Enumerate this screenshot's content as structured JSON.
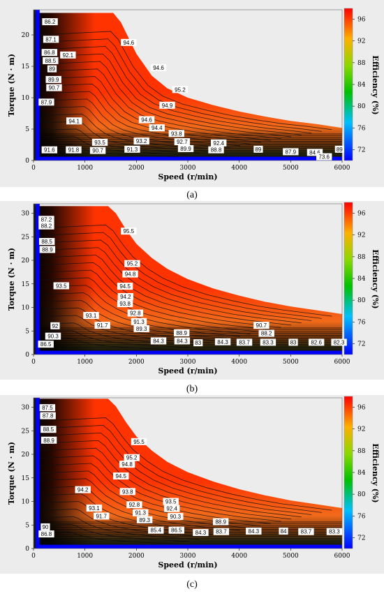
{
  "colors": {
    "high": "#ff3300",
    "mid": "#f26a1a",
    "low": "#1a1a0a",
    "blue": "#0000ff",
    "background": "#ececec"
  },
  "chart_data": [
    {
      "type": "heatmap",
      "caption": "(a)",
      "xlabel": "Speed (r/min)",
      "ylabel": "Torque (N · m)",
      "colorbar_label": "Efficiency (%)",
      "xlim": [
        0,
        6000
      ],
      "ylim": [
        0,
        24
      ],
      "x_ticks": [
        0,
        1000,
        2000,
        3000,
        4000,
        5000,
        6000
      ],
      "y_ticks": [
        0,
        5,
        10,
        15,
        20
      ],
      "colorbar_ticks": [
        72,
        76,
        80,
        84,
        88,
        92,
        96
      ],
      "colorbar_range": [
        70,
        98
      ],
      "max_torque_envelope": {
        "speed": [
          0,
          1550,
          1700,
          2000,
          2300,
          2600,
          3000,
          3500,
          4000,
          4500,
          5000,
          5500,
          6000
        ],
        "torque": [
          23.5,
          23.5,
          22.0,
          17.0,
          13.5,
          11.5,
          10.0,
          8.8,
          7.8,
          7.0,
          6.3,
          5.8,
          5.2
        ]
      },
      "contour_labels": [
        {
          "text": "86.2",
          "speed": 320,
          "torque": 22.1
        },
        {
          "text": "87.1",
          "speed": 340,
          "torque": 19.3
        },
        {
          "text": "86.8",
          "speed": 310,
          "torque": 17.2
        },
        {
          "text": "92.1",
          "speed": 670,
          "torque": 16.8
        },
        {
          "text": "88.5",
          "speed": 330,
          "torque": 15.9
        },
        {
          "text": "89",
          "speed": 360,
          "torque": 14.6
        },
        {
          "text": "89.9",
          "speed": 390,
          "torque": 12.9
        },
        {
          "text": "90.7",
          "speed": 400,
          "torque": 11.6
        },
        {
          "text": "87.9",
          "speed": 250,
          "torque": 9.3
        },
        {
          "text": "94.6",
          "speed": 1850,
          "torque": 18.8
        },
        {
          "text": "94.6",
          "speed": 2430,
          "torque": 14.8
        },
        {
          "text": "95.2",
          "speed": 2850,
          "torque": 11.3
        },
        {
          "text": "94.9",
          "speed": 2600,
          "torque": 8.8
        },
        {
          "text": "94.1",
          "speed": 790,
          "torque": 6.3
        },
        {
          "text": "94.6",
          "speed": 2200,
          "torque": 6.5
        },
        {
          "text": "94.4",
          "speed": 2400,
          "torque": 5.2
        },
        {
          "text": "93.8",
          "speed": 2780,
          "torque": 4.3
        },
        {
          "text": "93.2",
          "speed": 2100,
          "torque": 3.1
        },
        {
          "text": "92.7",
          "speed": 2890,
          "torque": 3.0
        },
        {
          "text": "92.4",
          "speed": 3600,
          "torque": 2.8
        },
        {
          "text": "93.5",
          "speed": 1290,
          "torque": 2.9
        },
        {
          "text": "91.6",
          "speed": 310,
          "torque": 1.7
        },
        {
          "text": "91.8",
          "speed": 780,
          "torque": 1.7
        },
        {
          "text": "90.7",
          "speed": 1250,
          "torque": 1.6
        },
        {
          "text": "91.3",
          "speed": 1920,
          "torque": 1.8
        },
        {
          "text": "89.9",
          "speed": 2960,
          "torque": 1.9
        },
        {
          "text": "88.8",
          "speed": 3550,
          "torque": 1.7
        },
        {
          "text": "89",
          "speed": 4370,
          "torque": 1.8
        },
        {
          "text": "87.9",
          "speed": 5000,
          "torque": 1.4
        },
        {
          "text": "84.6",
          "speed": 5470,
          "torque": 1.3
        },
        {
          "text": "89",
          "speed": 5950,
          "torque": 1.8
        },
        {
          "text": "73.6",
          "speed": 5650,
          "torque": 0.6
        }
      ]
    },
    {
      "type": "heatmap",
      "caption": "(b)",
      "xlabel": "Speed (r/min)",
      "ylabel": "Torque (N · m)",
      "colorbar_label": "Efficiency (%)",
      "xlim": [
        0,
        6000
      ],
      "ylim": [
        0,
        32
      ],
      "x_ticks": [
        0,
        1000,
        2000,
        3000,
        4000,
        5000,
        6000
      ],
      "y_ticks": [
        0,
        5,
        10,
        15,
        20,
        25,
        30
      ],
      "colorbar_ticks": [
        72,
        76,
        80,
        84,
        88,
        92,
        96
      ],
      "colorbar_range": [
        70,
        98
      ],
      "max_torque_envelope": {
        "speed": [
          0,
          1450,
          1600,
          1800,
          2000,
          2300,
          2600,
          3000,
          3500,
          4000,
          4500,
          5000,
          5500,
          6000
        ],
        "torque": [
          31.5,
          31.5,
          30.0,
          26.5,
          23.5,
          20.5,
          18.2,
          16.0,
          14.0,
          12.5,
          11.2,
          10.2,
          9.4,
          8.6
        ]
      },
      "contour_labels": [
        {
          "text": "87.2",
          "speed": 250,
          "torque": 28.7
        },
        {
          "text": "88.2",
          "speed": 250,
          "torque": 27.3
        },
        {
          "text": "95.5",
          "speed": 1850,
          "torque": 26.2
        },
        {
          "text": "88.5",
          "speed": 260,
          "torque": 24.0
        },
        {
          "text": "88.9",
          "speed": 270,
          "torque": 22.3
        },
        {
          "text": "95.2",
          "speed": 1920,
          "torque": 19.3
        },
        {
          "text": "94.8",
          "speed": 1880,
          "torque": 17.1
        },
        {
          "text": "93.5",
          "speed": 540,
          "torque": 14.6
        },
        {
          "text": "94.5",
          "speed": 1780,
          "torque": 14.5
        },
        {
          "text": "94.2",
          "speed": 1790,
          "torque": 12.3
        },
        {
          "text": "93.8",
          "speed": 1780,
          "torque": 10.8
        },
        {
          "text": "93.1",
          "speed": 1120,
          "torque": 8.3
        },
        {
          "text": "92.8",
          "speed": 1980,
          "torque": 8.8
        },
        {
          "text": "91.3",
          "speed": 2050,
          "torque": 7.0
        },
        {
          "text": "92",
          "speed": 420,
          "torque": 6.1
        },
        {
          "text": "91.7",
          "speed": 1340,
          "torque": 6.2
        },
        {
          "text": "89.3",
          "speed": 2100,
          "torque": 5.5
        },
        {
          "text": "90.7",
          "speed": 4430,
          "torque": 6.2
        },
        {
          "text": "90.3",
          "speed": 380,
          "torque": 3.9
        },
        {
          "text": "88.9",
          "speed": 2880,
          "torque": 4.6
        },
        {
          "text": "88.2",
          "speed": 4530,
          "torque": 4.5
        },
        {
          "text": "86.5",
          "speed": 240,
          "torque": 2.2
        },
        {
          "text": "84.3",
          "speed": 2430,
          "torque": 2.9
        },
        {
          "text": "84.3",
          "speed": 2890,
          "torque": 2.9
        },
        {
          "text": "83",
          "speed": 3200,
          "torque": 2.5
        },
        {
          "text": "84.3",
          "speed": 3680,
          "torque": 2.7
        },
        {
          "text": "83.7",
          "speed": 4100,
          "torque": 2.6
        },
        {
          "text": "83.3",
          "speed": 4560,
          "torque": 2.6
        },
        {
          "text": "83",
          "speed": 5050,
          "torque": 2.6
        },
        {
          "text": "82.6",
          "speed": 5500,
          "torque": 2.6
        },
        {
          "text": "82.3",
          "speed": 5940,
          "torque": 2.6
        }
      ]
    },
    {
      "type": "heatmap",
      "caption": "(c)",
      "xlabel": "Speed (r/min)",
      "ylabel": "Torque (N · m)",
      "colorbar_label": "Efficiency (%)",
      "xlim": [
        0,
        6000
      ],
      "ylim": [
        0,
        32
      ],
      "x_ticks": [
        0,
        1000,
        2000,
        3000,
        4000,
        5000,
        6000
      ],
      "y_ticks": [
        0,
        5,
        10,
        15,
        20,
        25,
        30
      ],
      "colorbar_ticks": [
        72,
        76,
        80,
        84,
        88,
        92,
        96
      ],
      "colorbar_range": [
        70,
        98
      ],
      "max_torque_envelope": {
        "speed": [
          0,
          1450,
          1600,
          1800,
          2000,
          2300,
          2600,
          3000,
          3500,
          4000,
          4500,
          5000,
          5500,
          6000
        ],
        "torque": [
          31.8,
          31.8,
          30.2,
          26.8,
          23.8,
          20.8,
          18.4,
          16.2,
          14.2,
          12.6,
          11.3,
          10.2,
          9.4,
          8.6
        ]
      },
      "contour_labels": [
        {
          "text": "87.5",
          "speed": 270,
          "torque": 29.9
        },
        {
          "text": "87.8",
          "speed": 280,
          "torque": 28.2
        },
        {
          "text": "88.5",
          "speed": 290,
          "torque": 25.3
        },
        {
          "text": "88.9",
          "speed": 300,
          "torque": 23.0
        },
        {
          "text": "95.5",
          "speed": 2050,
          "torque": 22.7
        },
        {
          "text": "95.2",
          "speed": 1910,
          "torque": 19.3
        },
        {
          "text": "94.8",
          "speed": 1820,
          "torque": 17.9
        },
        {
          "text": "94.5",
          "speed": 1700,
          "torque": 15.4
        },
        {
          "text": "94.2",
          "speed": 960,
          "torque": 12.5
        },
        {
          "text": "93.8",
          "speed": 1830,
          "torque": 12.1
        },
        {
          "text": "93.5",
          "speed": 2670,
          "torque": 10.0
        },
        {
          "text": "93.1",
          "speed": 1180,
          "torque": 8.6
        },
        {
          "text": "92.8",
          "speed": 1960,
          "torque": 9.3
        },
        {
          "text": "92.4",
          "speed": 2690,
          "torque": 8.5
        },
        {
          "text": "91.3",
          "speed": 2080,
          "torque": 7.6
        },
        {
          "text": "91.7",
          "speed": 1320,
          "torque": 6.9
        },
        {
          "text": "89.3",
          "speed": 2160,
          "torque": 6.1
        },
        {
          "text": "90.3",
          "speed": 2760,
          "torque": 6.8
        },
        {
          "text": "90",
          "speed": 230,
          "torque": 4.6
        },
        {
          "text": "88.9",
          "speed": 3640,
          "torque": 5.7
        },
        {
          "text": "85.4",
          "speed": 2380,
          "torque": 3.9
        },
        {
          "text": "86.5",
          "speed": 2780,
          "torque": 3.9
        },
        {
          "text": "84.3",
          "speed": 3250,
          "torque": 3.4
        },
        {
          "text": "83.7",
          "speed": 3650,
          "torque": 3.6
        },
        {
          "text": "84.3",
          "speed": 4280,
          "torque": 3.7
        },
        {
          "text": "84",
          "speed": 4860,
          "torque": 3.7
        },
        {
          "text": "83.7",
          "speed": 5300,
          "torque": 3.6
        },
        {
          "text": "83.3",
          "speed": 5850,
          "torque": 3.6
        },
        {
          "text": "86.8",
          "speed": 250,
          "torque": 3.1
        }
      ]
    }
  ]
}
